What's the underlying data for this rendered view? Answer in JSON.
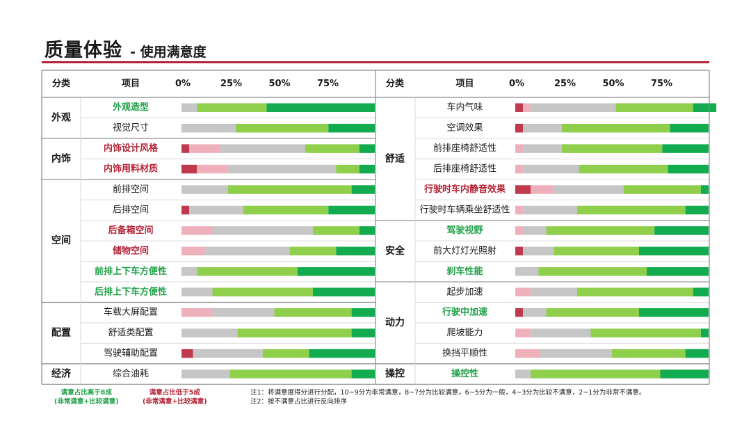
{
  "title": {
    "main": "质量体验",
    "sub": "- 使用满意度"
  },
  "headers": {
    "category": "分类",
    "item": "项目"
  },
  "axis_ticks": [
    "0%",
    "25%",
    "50%",
    "75%"
  ],
  "colors": {
    "very_dissatisfied": "#c0394d",
    "dissatisfied": "#eeb1bb",
    "neutral": "#c6c6c6",
    "satisfied": "#8fcf4c",
    "very_satisfied": "#12ab50",
    "label_good": "#22a14a",
    "label_bad": "#b32235",
    "label_neutral": "#1a1a1a"
  },
  "chart_data": {
    "type": "bar",
    "stacked": true,
    "orientation": "horizontal",
    "xlim": [
      0,
      100
    ],
    "segments": [
      "非常不满意(2~1分)",
      "比较不满意(4~3分)",
      "一般(6~5分)",
      "比较满意(8~7分)",
      "非常满意(10~9分)"
    ],
    "panels": [
      {
        "groups": [
          {
            "category": "外观",
            "items": [
              {
                "label": "外观造型",
                "status": "good",
                "values": [
                  0,
                  0,
                  8,
                  36,
                  56
                ]
              },
              {
                "label": "视觉尺寸",
                "status": "neutral",
                "values": [
                  0,
                  0,
                  28,
                  48,
                  24
                ]
              }
            ]
          },
          {
            "category": "内饰",
            "items": [
              {
                "label": "内饰设计风格",
                "status": "bad",
                "values": [
                  4,
                  16,
                  44,
                  28,
                  8
                ]
              },
              {
                "label": "内饰用料材质",
                "status": "bad",
                "values": [
                  8,
                  16,
                  56,
                  12,
                  8
                ]
              }
            ]
          },
          {
            "category": "空间",
            "items": [
              {
                "label": "前排空间",
                "status": "neutral",
                "values": [
                  0,
                  0,
                  24,
                  64,
                  12
                ]
              },
              {
                "label": "后排空间",
                "status": "neutral",
                "values": [
                  4,
                  0,
                  28,
                  44,
                  24
                ]
              },
              {
                "label": "后备箱空间",
                "status": "bad",
                "values": [
                  0,
                  16,
                  52,
                  24,
                  8
                ]
              },
              {
                "label": "储物空间",
                "status": "bad",
                "values": [
                  0,
                  12,
                  44,
                  24,
                  20
                ]
              },
              {
                "label": "前排上下车方便性",
                "status": "good",
                "values": [
                  0,
                  0,
                  8,
                  52,
                  40
                ]
              },
              {
                "label": "后排上下车方便性",
                "status": "good",
                "values": [
                  0,
                  0,
                  16,
                  52,
                  32
                ]
              }
            ]
          },
          {
            "category": "配置",
            "items": [
              {
                "label": "车载大屏配置",
                "status": "neutral",
                "values": [
                  0,
                  16,
                  32,
                  40,
                  12
                ]
              },
              {
                "label": "舒适类配置",
                "status": "neutral",
                "values": [
                  0,
                  0,
                  29,
                  59,
                  12
                ]
              },
              {
                "label": "驾驶辅助配置",
                "status": "neutral",
                "values": [
                  6,
                  0,
                  36,
                  24,
                  34
                ]
              }
            ]
          },
          {
            "category": "经济",
            "items": [
              {
                "label": "综合油耗",
                "status": "neutral",
                "values": [
                  0,
                  0,
                  25,
                  63,
                  12
                ]
              }
            ]
          }
        ]
      },
      {
        "groups": [
          {
            "category": "舒适",
            "items": [
              {
                "label": "车内气味",
                "status": "neutral",
                "values": [
                  4,
                  4,
                  44,
                  40,
                  12
                ]
              },
              {
                "label": "空调效果",
                "status": "neutral",
                "values": [
                  4,
                  0,
                  20,
                  56,
                  20
                ]
              },
              {
                "label": "前排座椅舒适性",
                "status": "neutral",
                "values": [
                  0,
                  4,
                  20,
                  52,
                  24
                ]
              },
              {
                "label": "后排座椅舒适性",
                "status": "neutral",
                "values": [
                  0,
                  4,
                  29,
                  46,
                  21
                ]
              },
              {
                "label": "行驶时车内静音效果",
                "status": "bad",
                "values": [
                  8,
                  12,
                  36,
                  40,
                  4
                ]
              },
              {
                "label": "行驶时车辆乘坐舒适性",
                "status": "neutral",
                "values": [
                  0,
                  4,
                  28,
                  56,
                  12
                ]
              }
            ]
          },
          {
            "category": "安全",
            "items": [
              {
                "label": "驾驶视野",
                "status": "good",
                "values": [
                  0,
                  4,
                  12,
                  56,
                  28
                ]
              },
              {
                "label": "前大灯灯光照射",
                "status": "neutral",
                "values": [
                  4,
                  0,
                  16,
                  44,
                  36
                ]
              },
              {
                "label": "刹车性能",
                "status": "good",
                "values": [
                  0,
                  0,
                  12,
                  56,
                  32
                ]
              }
            ]
          },
          {
            "category": "动力",
            "items": [
              {
                "label": "起步加速",
                "status": "neutral",
                "values": [
                  0,
                  8,
                  24,
                  60,
                  8
                ]
              },
              {
                "label": "行驶中加速",
                "status": "good",
                "values": [
                  4,
                  0,
                  12,
                  48,
                  36
                ]
              },
              {
                "label": "爬坡能力",
                "status": "neutral",
                "values": [
                  0,
                  8,
                  31,
                  57,
                  4
                ]
              },
              {
                "label": "换挡平顺性",
                "status": "neutral",
                "values": [
                  0,
                  13,
                  37,
                  38,
                  12
                ]
              }
            ]
          },
          {
            "category": "操控",
            "items": [
              {
                "label": "操控性",
                "status": "good",
                "values": [
                  0,
                  0,
                  8,
                  67,
                  25
                ]
              }
            ]
          }
        ]
      }
    ]
  },
  "legend": {
    "good_line1": "满意占比高于8成",
    "good_line2": "(非常满意+比较满意)",
    "bad_line1": "满意占比低于5成",
    "bad_line2": "(非常满意+比较满意)"
  },
  "notes": {
    "note1": "注1：将满意度得分进行分配，10~9分为非常满意，8~7分为比较满意，6~5分为一般，4~3分为比较不满意，2~1分为非常不满意。",
    "note2": "注2：按不满意占比进行反向排序"
  }
}
